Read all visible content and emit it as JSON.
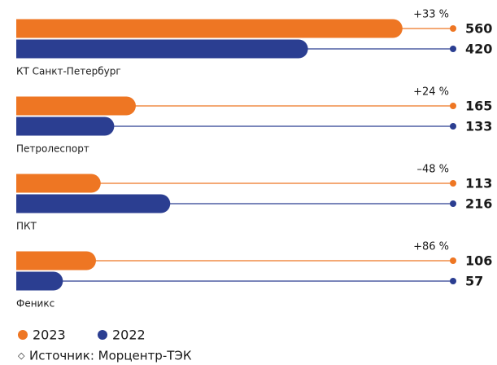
{
  "chart_data": {
    "type": "bar",
    "orientation": "horizontal",
    "categories": [
      "КТ Санкт-Петербург",
      "Петролеспорт",
      "ПКТ",
      "Феникс"
    ],
    "series": [
      {
        "name": "2023",
        "color": "#ee7623",
        "values": [
          560,
          165,
          113,
          106
        ]
      },
      {
        "name": "2022",
        "color": "#2b3e91",
        "values": [
          420,
          133,
          216,
          57
        ]
      }
    ],
    "annotations": [
      "+33 %",
      "+24 %",
      "–48 %",
      "+86 %"
    ],
    "source": "Источник: Морцентр-ТЭК"
  }
}
